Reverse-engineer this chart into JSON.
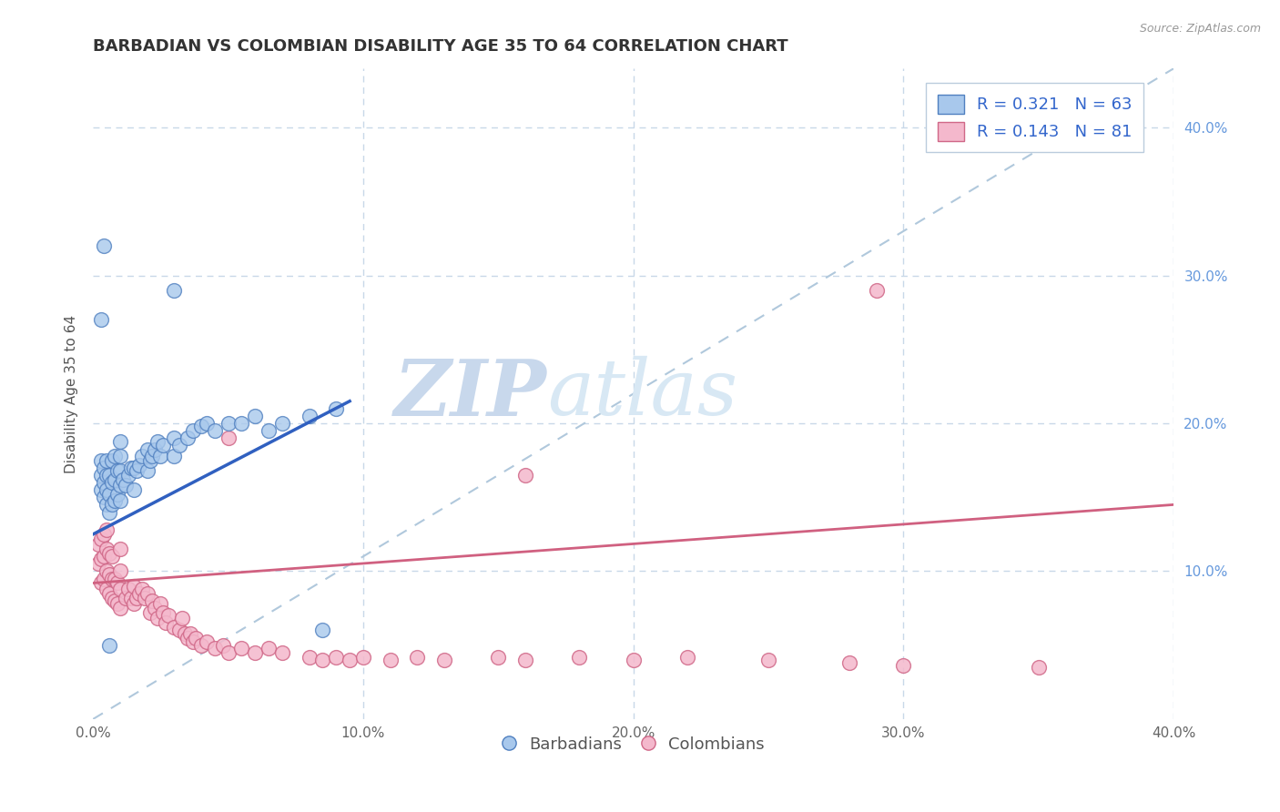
{
  "title": "BARBADIAN VS COLOMBIAN DISABILITY AGE 35 TO 64 CORRELATION CHART",
  "source": "Source: ZipAtlas.com",
  "ylabel": "Disability Age 35 to 64",
  "xmin": 0.0,
  "xmax": 0.4,
  "ymin": 0.0,
  "ymax": 0.44,
  "yticks": [
    0.1,
    0.2,
    0.3,
    0.4
  ],
  "ytick_labels": [
    "10.0%",
    "20.0%",
    "30.0%",
    "40.0%"
  ],
  "xticks": [
    0.0,
    0.1,
    0.2,
    0.3,
    0.4
  ],
  "xtick_labels": [
    "0.0%",
    "10.0%",
    "20.0%",
    "30.0%",
    "40.0%"
  ],
  "legend_r1": "R = 0.321",
  "legend_n1": "N = 63",
  "legend_r2": "R = 0.143",
  "legend_n2": "N = 81",
  "color_blue_fill": "#A8C8EC",
  "color_pink_fill": "#F4B8CC",
  "color_blue_edge": "#5080C0",
  "color_pink_edge": "#D06888",
  "color_blue_line": "#3060C0",
  "color_pink_line": "#D06080",
  "color_dashed": "#B0C8DC",
  "color_grid": "#C8D8E8",
  "watermark_zip": "ZIP",
  "watermark_atlas": "atlas",
  "background_color": "#FFFFFF",
  "blue_line_x_start": 0.0,
  "blue_line_x_end": 0.095,
  "blue_line_y_start": 0.125,
  "blue_line_y_end": 0.215,
  "pink_line_x_start": 0.0,
  "pink_line_x_end": 0.4,
  "pink_line_y_start": 0.092,
  "pink_line_y_end": 0.145,
  "blue_x": [
    0.003,
    0.003,
    0.003,
    0.004,
    0.004,
    0.004,
    0.005,
    0.005,
    0.005,
    0.005,
    0.006,
    0.006,
    0.006,
    0.007,
    0.007,
    0.007,
    0.008,
    0.008,
    0.008,
    0.009,
    0.009,
    0.01,
    0.01,
    0.01,
    0.01,
    0.01,
    0.011,
    0.012,
    0.013,
    0.014,
    0.015,
    0.015,
    0.016,
    0.017,
    0.018,
    0.02,
    0.02,
    0.021,
    0.022,
    0.023,
    0.024,
    0.025,
    0.026,
    0.03,
    0.03,
    0.032,
    0.035,
    0.037,
    0.04,
    0.042,
    0.045,
    0.05,
    0.055,
    0.06,
    0.065,
    0.07,
    0.08,
    0.09,
    0.003,
    0.004,
    0.006,
    0.03,
    0.085
  ],
  "blue_y": [
    0.155,
    0.165,
    0.175,
    0.15,
    0.16,
    0.17,
    0.145,
    0.155,
    0.165,
    0.175,
    0.14,
    0.152,
    0.165,
    0.145,
    0.16,
    0.175,
    0.148,
    0.162,
    0.178,
    0.152,
    0.168,
    0.148,
    0.158,
    0.168,
    0.178,
    0.188,
    0.162,
    0.158,
    0.165,
    0.17,
    0.155,
    0.17,
    0.168,
    0.172,
    0.178,
    0.168,
    0.182,
    0.175,
    0.178,
    0.182,
    0.188,
    0.178,
    0.185,
    0.178,
    0.19,
    0.185,
    0.19,
    0.195,
    0.198,
    0.2,
    0.195,
    0.2,
    0.2,
    0.205,
    0.195,
    0.2,
    0.205,
    0.21,
    0.27,
    0.32,
    0.05,
    0.29,
    0.06
  ],
  "pink_x": [
    0.002,
    0.002,
    0.003,
    0.003,
    0.003,
    0.004,
    0.004,
    0.004,
    0.005,
    0.005,
    0.005,
    0.005,
    0.006,
    0.006,
    0.006,
    0.007,
    0.007,
    0.007,
    0.008,
    0.008,
    0.009,
    0.009,
    0.01,
    0.01,
    0.01,
    0.01,
    0.012,
    0.013,
    0.014,
    0.015,
    0.015,
    0.016,
    0.017,
    0.018,
    0.019,
    0.02,
    0.021,
    0.022,
    0.023,
    0.024,
    0.025,
    0.026,
    0.027,
    0.028,
    0.03,
    0.032,
    0.033,
    0.034,
    0.035,
    0.036,
    0.037,
    0.038,
    0.04,
    0.042,
    0.045,
    0.048,
    0.05,
    0.055,
    0.06,
    0.065,
    0.07,
    0.08,
    0.085,
    0.09,
    0.095,
    0.1,
    0.11,
    0.12,
    0.13,
    0.15,
    0.16,
    0.18,
    0.2,
    0.22,
    0.25,
    0.28,
    0.3,
    0.35,
    0.05,
    0.16,
    0.29
  ],
  "pink_y": [
    0.105,
    0.118,
    0.092,
    0.108,
    0.122,
    0.095,
    0.11,
    0.125,
    0.088,
    0.1,
    0.115,
    0.128,
    0.085,
    0.098,
    0.112,
    0.082,
    0.095,
    0.11,
    0.08,
    0.095,
    0.078,
    0.092,
    0.075,
    0.088,
    0.1,
    0.115,
    0.082,
    0.088,
    0.082,
    0.078,
    0.09,
    0.082,
    0.085,
    0.088,
    0.082,
    0.085,
    0.072,
    0.08,
    0.075,
    0.068,
    0.078,
    0.072,
    0.065,
    0.07,
    0.062,
    0.06,
    0.068,
    0.058,
    0.055,
    0.058,
    0.052,
    0.055,
    0.05,
    0.052,
    0.048,
    0.05,
    0.045,
    0.048,
    0.045,
    0.048,
    0.045,
    0.042,
    0.04,
    0.042,
    0.04,
    0.042,
    0.04,
    0.042,
    0.04,
    0.042,
    0.04,
    0.042,
    0.04,
    0.042,
    0.04,
    0.038,
    0.036,
    0.035,
    0.19,
    0.165,
    0.29
  ]
}
